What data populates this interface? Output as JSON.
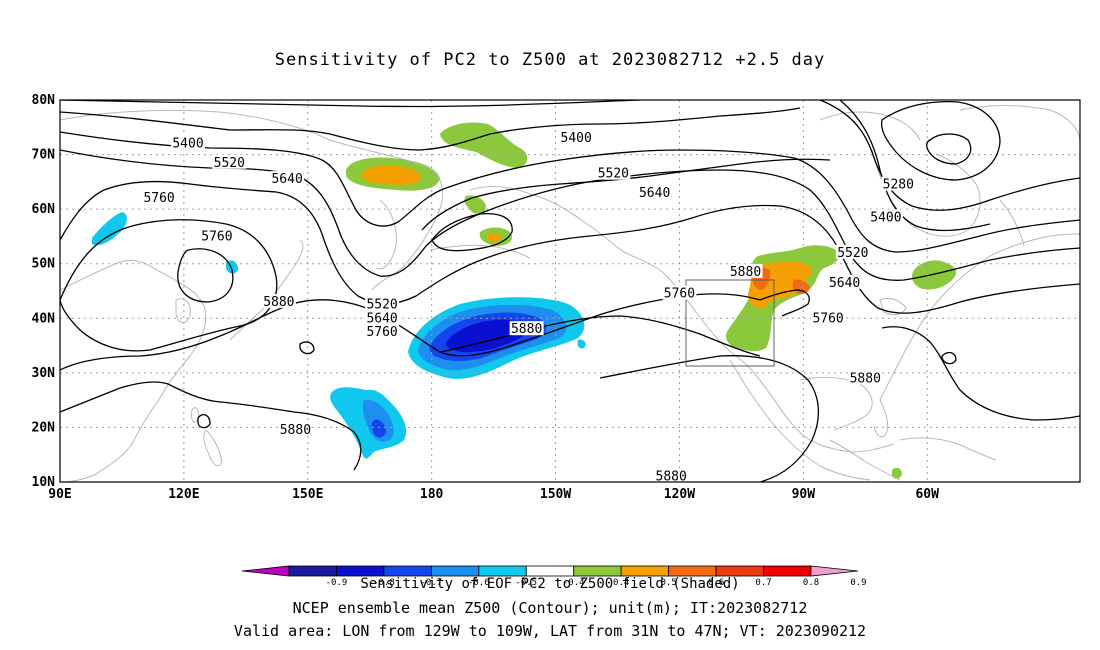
{
  "title": "Sensitivity of PC2 to Z500 at 2023082712 +2.5 day",
  "axes": {
    "lat_labels": [
      "80N",
      "70N",
      "60N",
      "50N",
      "40N",
      "30N",
      "20N",
      "10N"
    ],
    "lon_labels": [
      "90E",
      "120E",
      "150E",
      "180",
      "150W",
      "120W",
      "90W",
      "60W"
    ]
  },
  "contours": {
    "levels": [
      5280,
      5400,
      5520,
      5640,
      5760,
      5880
    ],
    "labels": [
      {
        "text": "5400",
        "lon": 121,
        "lat": 72
      },
      {
        "text": "5520",
        "lon": 131,
        "lat": 68.5
      },
      {
        "text": "5640",
        "lon": 145,
        "lat": 65.5
      },
      {
        "text": "5760",
        "lon": 114,
        "lat": 62
      },
      {
        "text": "5760",
        "lon": 128,
        "lat": 55
      },
      {
        "text": "5880",
        "lon": 143,
        "lat": 43
      },
      {
        "text": "5520",
        "lon": 168,
        "lat": 42.5
      },
      {
        "text": "5640",
        "lon": 168,
        "lat": 40
      },
      {
        "text": "5760",
        "lon": 168,
        "lat": 37.5
      },
      {
        "text": "5880",
        "lon": 203,
        "lat": 38
      },
      {
        "text": "5400",
        "lon": 215,
        "lat": 73
      },
      {
        "text": "5520",
        "lon": 224,
        "lat": 66.5
      },
      {
        "text": "5640",
        "lon": 234,
        "lat": 63
      },
      {
        "text": "5760",
        "lon": 240,
        "lat": 44.5
      },
      {
        "text": "5880",
        "lon": 256,
        "lat": 48.5
      },
      {
        "text": "5280",
        "lon": 293,
        "lat": 64.5
      },
      {
        "text": "5400",
        "lon": 290,
        "lat": 58.5
      },
      {
        "text": "5520",
        "lon": 282,
        "lat": 52
      },
      {
        "text": "5640",
        "lon": 280,
        "lat": 46.5
      },
      {
        "text": "5760",
        "lon": 276,
        "lat": 40
      },
      {
        "text": "5880",
        "lon": 285,
        "lat": 29
      },
      {
        "text": "5880",
        "lon": 147,
        "lat": 19.5
      },
      {
        "text": "5880",
        "lon": 238,
        "lat": 11
      }
    ]
  },
  "valid_area_box": {
    "lon_min": -129,
    "lon_max": -109,
    "lat_min": 31,
    "lat_max": 47
  },
  "colorbar": {
    "labels": [
      "-0.9",
      "-0.8",
      "-0.7",
      "-0.6",
      "-0.5",
      "-0.4",
      "0.4",
      "0.5",
      "0.6",
      "0.7",
      "0.8",
      "0.9"
    ],
    "colors": [
      "#c000c0",
      "#1a1a9a",
      "#0a10d0",
      "#1446ee",
      "#1e8ef0",
      "#10c8ee",
      "#ffffff",
      "#8cc83c",
      "#f4a000",
      "#f46a14",
      "#ee3a10",
      "#f00000",
      "#f0a0d0"
    ]
  },
  "shading": [
    {
      "level": "neg-0.7",
      "color": "#0a10d0"
    },
    {
      "level": "neg-0.6",
      "color": "#1446ee"
    },
    {
      "level": "neg-0.5",
      "color": "#1e8ef0"
    },
    {
      "level": "neg-0.4",
      "color": "#10c8ee"
    },
    {
      "level": "pos-0.4",
      "color": "#8cc83c"
    },
    {
      "level": "pos-0.5",
      "color": "#f4a000"
    },
    {
      "level": "pos-0.6",
      "color": "#f46a14"
    }
  ],
  "colorbar_title": "Sensitivity of EOF PC2 to Z500 field (Shaded)",
  "footer": {
    "line1": "NCEP ensemble mean Z500 (Contour); unit(m); IT:2023082712",
    "line2": "Valid area: LON from 129W to 109W, LAT from 31N to 47N; VT: 2023090212"
  }
}
